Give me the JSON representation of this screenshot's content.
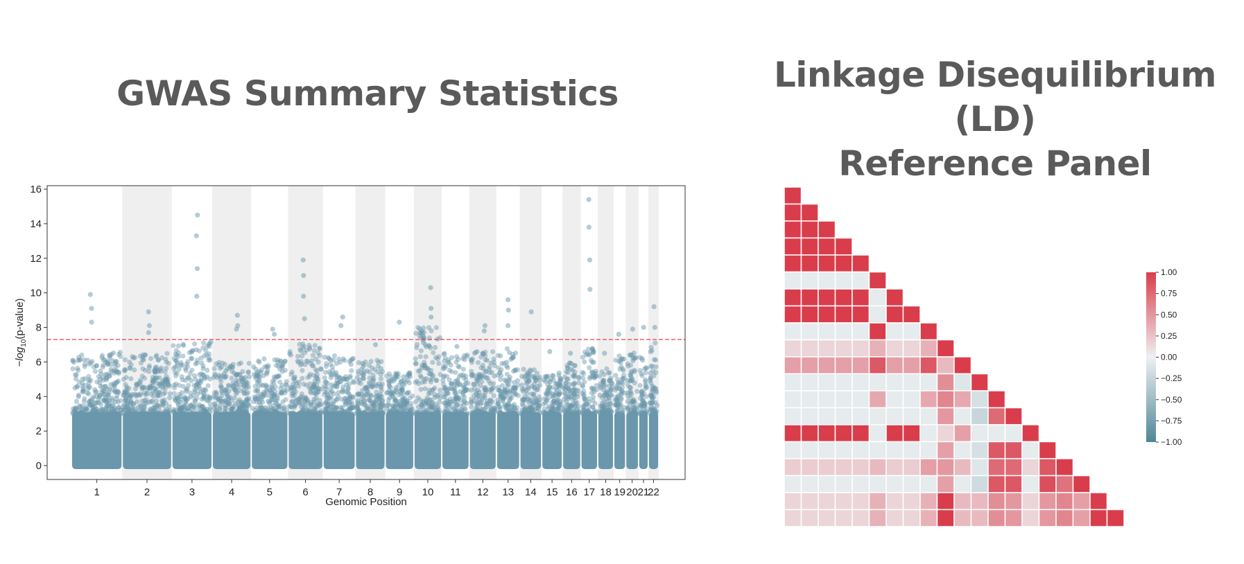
{
  "titles": {
    "left": "GWAS Summary Statistics",
    "right_line1": "Linkage Disequilibrium (LD)",
    "right_line2": "Reference Panel"
  },
  "chart_data": [
    {
      "type": "scatter",
      "subtype": "manhattan",
      "xlabel": "Genomic Position",
      "ylabel": "−log10(p-value)",
      "ylim": [
        -0.8,
        16.2
      ],
      "yticks": [
        0,
        2,
        4,
        6,
        8,
        10,
        12,
        14,
        16
      ],
      "significance_threshold": 7.3,
      "threshold_color": "#d9434b",
      "point_color": "#6a97ab",
      "band_color": "#efefef",
      "grid": false,
      "chromosomes": [
        {
          "label": "1",
          "length": 249,
          "peak": 6.6,
          "hits": [
            9.9,
            9.1,
            8.3
          ]
        },
        {
          "label": "2",
          "length": 243,
          "peak": 6.5,
          "hits": [
            8.9,
            8.1,
            7.7
          ]
        },
        {
          "label": "3",
          "length": 198,
          "peak": 7.2,
          "hits": [
            14.5,
            13.3,
            11.4,
            9.8
          ]
        },
        {
          "label": "4",
          "length": 191,
          "peak": 6.0,
          "hits": [
            8.7,
            8.1,
            7.9
          ]
        },
        {
          "label": "5",
          "length": 181,
          "peak": 6.2,
          "hits": [
            7.9,
            7.6
          ]
        },
        {
          "label": "6",
          "length": 171,
          "peak": 7.1,
          "hits": [
            11.9,
            11.0,
            9.8,
            8.5
          ]
        },
        {
          "label": "7",
          "length": 159,
          "peak": 6.4,
          "hits": [
            8.6,
            8.1
          ]
        },
        {
          "label": "8",
          "length": 146,
          "peak": 6.1,
          "hits": [
            7.0
          ]
        },
        {
          "label": "9",
          "length": 141,
          "peak": 5.4,
          "hits": [
            8.3
          ]
        },
        {
          "label": "10",
          "length": 136,
          "peak": 8.0,
          "hits": [
            10.3,
            9.1,
            8.6
          ]
        },
        {
          "label": "11",
          "length": 135,
          "peak": 6.5,
          "hits": [
            6.9
          ]
        },
        {
          "label": "12",
          "length": 133,
          "peak": 6.6,
          "hits": [
            8.1,
            7.8
          ]
        },
        {
          "label": "13",
          "length": 115,
          "peak": 6.8,
          "hits": [
            9.6,
            9.0,
            8.1
          ]
        },
        {
          "label": "14",
          "length": 107,
          "peak": 5.6,
          "hits": [
            8.9
          ]
        },
        {
          "label": "15",
          "length": 102,
          "peak": 5.4,
          "hits": [
            6.6
          ]
        },
        {
          "label": "16",
          "length": 90,
          "peak": 6.0,
          "hits": [
            6.5
          ]
        },
        {
          "label": "17",
          "length": 83,
          "peak": 7.2,
          "hits": [
            15.4,
            13.8,
            11.9,
            10.2
          ]
        },
        {
          "label": "18",
          "length": 78,
          "peak": 5.8,
          "hits": [
            6.5
          ]
        },
        {
          "label": "19",
          "length": 59,
          "peak": 6.4,
          "hits": [
            7.6
          ]
        },
        {
          "label": "20",
          "length": 63,
          "peak": 6.6,
          "hits": [
            7.9
          ]
        },
        {
          "label": "21",
          "length": 48,
          "peak": 6.4,
          "hits": [
            8.0
          ]
        },
        {
          "label": "22",
          "length": 51,
          "peak": 7.2,
          "hits": [
            9.2,
            8.0
          ]
        }
      ]
    },
    {
      "type": "heatmap",
      "subtype": "lower-triangle correlation",
      "n": 20,
      "colorbar_ticks": [
        "1.00",
        "0.75",
        "0.50",
        "0.25",
        "0.00",
        "−0.25",
        "−0.50",
        "−0.75",
        "−1.00"
      ],
      "vmin": -1.0,
      "vmax": 1.0,
      "colors": {
        "negative": "#4e8796",
        "neutral": "#eef0f2",
        "positive": "#d93d4b"
      },
      "matrix": [
        [
          1.0
        ],
        [
          1.0,
          1.0
        ],
        [
          1.0,
          1.0,
          1.0
        ],
        [
          1.0,
          1.0,
          1.0,
          1.0
        ],
        [
          1.0,
          1.0,
          1.0,
          1.0,
          1.0
        ],
        [
          -0.05,
          -0.05,
          -0.05,
          -0.05,
          -0.05,
          1.0
        ],
        [
          1.0,
          1.0,
          1.0,
          1.0,
          1.0,
          -0.05,
          1.0
        ],
        [
          1.0,
          1.0,
          1.0,
          1.0,
          1.0,
          -0.05,
          1.0,
          1.0
        ],
        [
          -0.05,
          -0.05,
          -0.05,
          -0.05,
          -0.05,
          1.0,
          -0.05,
          -0.05,
          1.0
        ],
        [
          0.15,
          0.15,
          0.15,
          0.15,
          0.15,
          0.35,
          0.15,
          0.15,
          0.35,
          1.0
        ],
        [
          0.45,
          0.45,
          0.45,
          0.45,
          0.45,
          0.85,
          0.45,
          0.45,
          0.85,
          0.3,
          1.0
        ],
        [
          -0.05,
          -0.05,
          -0.05,
          -0.05,
          -0.05,
          -0.05,
          -0.05,
          -0.05,
          -0.05,
          0.55,
          -0.1,
          1.0
        ],
        [
          -0.05,
          -0.05,
          -0.05,
          -0.05,
          -0.05,
          0.4,
          -0.05,
          -0.05,
          0.4,
          0.6,
          0.4,
          -0.15,
          1.0
        ],
        [
          -0.05,
          -0.05,
          -0.05,
          -0.05,
          -0.05,
          -0.05,
          -0.05,
          -0.05,
          -0.05,
          0.5,
          -0.05,
          -0.25,
          0.75,
          1.0
        ],
        [
          1.0,
          1.0,
          1.0,
          1.0,
          1.0,
          -0.05,
          1.0,
          1.0,
          -0.05,
          0.15,
          0.45,
          -0.05,
          -0.05,
          -0.05,
          1.0
        ],
        [
          -0.05,
          -0.05,
          -0.05,
          -0.05,
          -0.05,
          -0.05,
          -0.05,
          -0.05,
          -0.05,
          0.45,
          -0.05,
          -0.15,
          0.85,
          0.85,
          -0.05,
          1.0
        ],
        [
          0.2,
          0.2,
          0.2,
          0.2,
          0.2,
          0.3,
          0.2,
          0.2,
          0.45,
          0.5,
          0.3,
          -0.1,
          0.75,
          0.75,
          0.15,
          0.85,
          1.0
        ],
        [
          -0.05,
          -0.05,
          -0.05,
          -0.05,
          -0.05,
          -0.05,
          -0.05,
          -0.05,
          -0.05,
          0.45,
          -0.05,
          -0.2,
          0.85,
          0.85,
          -0.05,
          0.9,
          0.7,
          1.0
        ],
        [
          0.15,
          0.15,
          0.15,
          0.15,
          0.15,
          0.35,
          0.15,
          0.15,
          0.35,
          1.0,
          0.3,
          0.3,
          0.55,
          0.5,
          0.15,
          0.5,
          0.6,
          0.45,
          1.0
        ],
        [
          0.15,
          0.15,
          0.15,
          0.15,
          0.15,
          0.35,
          0.15,
          0.15,
          0.35,
          1.0,
          0.3,
          0.3,
          0.55,
          0.5,
          0.15,
          0.5,
          0.6,
          0.45,
          1.0,
          1.0
        ]
      ]
    }
  ]
}
